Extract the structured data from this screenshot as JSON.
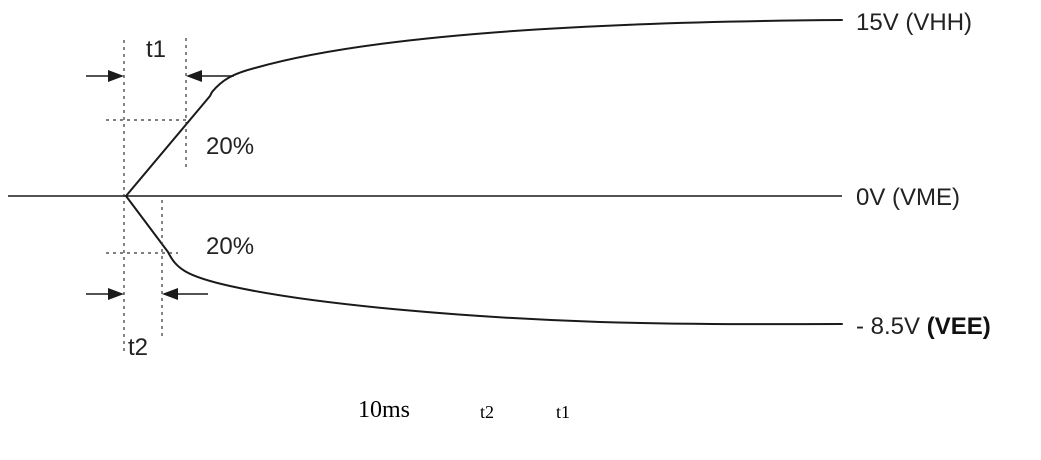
{
  "levels": {
    "vhh": "15V (VHH)",
    "vme": "0V (VME)",
    "vee_prefix": "- 8.5V ",
    "vee_name": "(VEE)"
  },
  "timing": {
    "t1_label": "t1",
    "t2_label": "t2",
    "rise_pct": "20%",
    "fall_pct": "20%"
  },
  "footnote": {
    "duration": "10ms",
    "t2": "t2",
    "t1": "t1"
  }
}
